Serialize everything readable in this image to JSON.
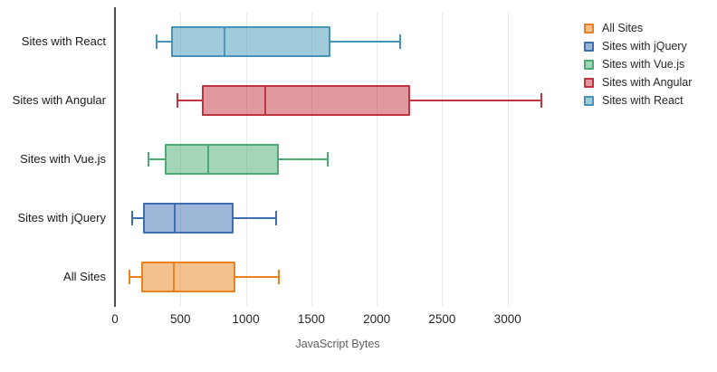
{
  "chart_data": {
    "type": "boxplot",
    "orientation": "horizontal",
    "title": "",
    "xlabel": "JavaScript Bytes",
    "ylabel": "",
    "xlim": [
      0,
      3500
    ],
    "x_ticks": [
      0,
      500,
      1000,
      1500,
      2000,
      2500,
      3000
    ],
    "grid": true,
    "legend_position": "top-right",
    "categories_top_to_bottom": [
      "Sites with React",
      "Sites with Angular",
      "Sites with Vue.js",
      "Sites with jQuery",
      "All Sites"
    ],
    "series": [
      {
        "name": "Sites with React",
        "color": "#4495B8",
        "min": 320,
        "q1": 430,
        "median": 840,
        "q3": 1645,
        "max": 2180
      },
      {
        "name": "Sites with Angular",
        "color": "#BF3340",
        "min": 475,
        "q1": 665,
        "median": 1150,
        "q3": 2255,
        "max": 3255
      },
      {
        "name": "Sites with Vue.js",
        "color": "#4AAB74",
        "min": 255,
        "q1": 380,
        "median": 710,
        "q3": 1250,
        "max": 1625
      },
      {
        "name": "Sites with jQuery",
        "color": "#3C6EB0",
        "min": 130,
        "q1": 215,
        "median": 455,
        "q3": 905,
        "max": 1230
      },
      {
        "name": "All Sites",
        "color": "#E8821E",
        "min": 110,
        "q1": 200,
        "median": 450,
        "q3": 920,
        "max": 1255
      }
    ],
    "legend": [
      {
        "label": "All Sites",
        "color": "#E8821E"
      },
      {
        "label": "Sites with jQuery",
        "color": "#3C6EB0"
      },
      {
        "label": "Sites with Vue.js",
        "color": "#4AAB74"
      },
      {
        "label": "Sites with Angular",
        "color": "#BF3340"
      },
      {
        "label": "Sites with React",
        "color": "#4495B8"
      }
    ],
    "box_fill_alpha": 0.5
  }
}
